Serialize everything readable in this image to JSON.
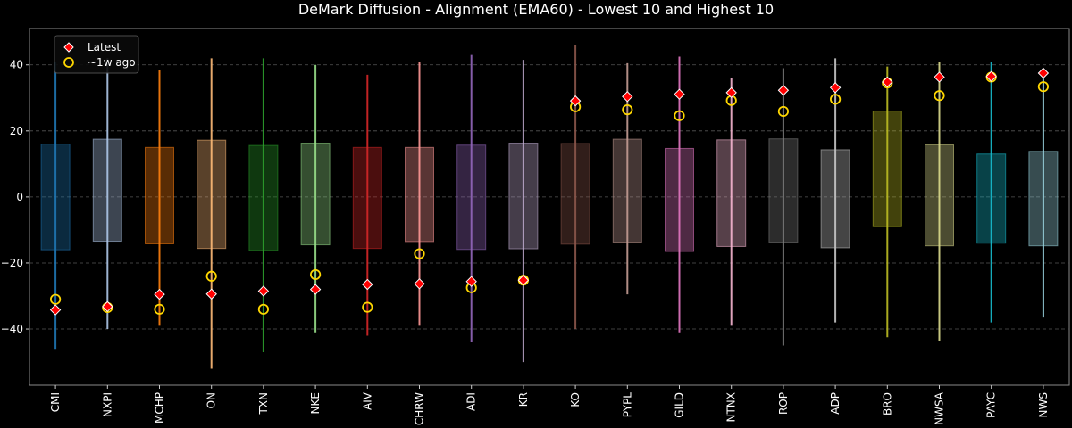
{
  "chart_data": {
    "type": "box-range",
    "title": "DeMark Diffusion - Alignment (EMA60) - Lowest 10 and Highest 10",
    "xlabel": "",
    "ylabel": "",
    "ylim": [
      -57,
      51
    ],
    "yticks": [
      -40,
      -20,
      0,
      20,
      40
    ],
    "grid": "y-dashed",
    "legend": {
      "placement": "top-left",
      "entries": [
        {
          "name": "Latest",
          "marker": "red-diamond"
        },
        {
          "name": "~1w ago",
          "marker": "yellow-circle"
        }
      ]
    },
    "categories": [
      {
        "label": "CMI",
        "color": "#1f77b4",
        "min": -46,
        "max": 41,
        "q1": -16,
        "q3": 16,
        "latest": -34.2,
        "week_ago": -31
      },
      {
        "label": "NXPI",
        "color": "#aec7e8",
        "min": -40,
        "max": 42,
        "q1": -13.4,
        "q3": 17.5,
        "latest": -33.2,
        "week_ago": -33.5
      },
      {
        "label": "MCHP",
        "color": "#ff7f0e",
        "min": -39,
        "max": 38.5,
        "q1": -14.2,
        "q3": 15,
        "latest": -29.5,
        "week_ago": -34
      },
      {
        "label": "ON",
        "color": "#ffbb78",
        "min": -52,
        "max": 42,
        "q1": -15.6,
        "q3": 17.2,
        "latest": -29.4,
        "week_ago": -24
      },
      {
        "label": "TXN",
        "color": "#2ca02c",
        "min": -47,
        "max": 42,
        "q1": -16.2,
        "q3": 15.6,
        "latest": -28.5,
        "week_ago": -34
      },
      {
        "label": "NKE",
        "color": "#98df8a",
        "min": -41,
        "max": 40,
        "q1": -14.5,
        "q3": 16.3,
        "latest": -28,
        "week_ago": -23.5
      },
      {
        "label": "AIV",
        "color": "#d62728",
        "min": -42,
        "max": 37,
        "q1": -15.6,
        "q3": 15,
        "latest": -26.5,
        "week_ago": -33.4
      },
      {
        "label": "CHRW",
        "color": "#ff9896",
        "min": -39,
        "max": 41,
        "q1": -13.5,
        "q3": 15,
        "latest": -26.3,
        "week_ago": -17.2
      },
      {
        "label": "ADI",
        "color": "#9467bd",
        "min": -44,
        "max": 43,
        "q1": -15.9,
        "q3": 15.7,
        "latest": -25.6,
        "week_ago": -27.5
      },
      {
        "label": "KR",
        "color": "#c5b0d5",
        "min": -50,
        "max": 41.5,
        "q1": -15.7,
        "q3": 16.3,
        "latest": -25.2,
        "week_ago": -25.2
      },
      {
        "label": "KO",
        "color": "#8c564b",
        "min": -40,
        "max": 46,
        "q1": -14.3,
        "q3": 16.2,
        "latest": 29.1,
        "week_ago": 27.3
      },
      {
        "label": "PYPL",
        "color": "#c49c94",
        "min": -29.5,
        "max": 40.5,
        "q1": -13.7,
        "q3": 17.5,
        "latest": 30.4,
        "week_ago": 26.4
      },
      {
        "label": "GILD",
        "color": "#e377c2",
        "min": -41,
        "max": 42.5,
        "q1": -16.5,
        "q3": 14.7,
        "latest": 31.1,
        "week_ago": 24.6
      },
      {
        "label": "NTNX",
        "color": "#f7b6d2",
        "min": -39,
        "max": 36,
        "q1": -15,
        "q3": 17.3,
        "latest": 31.6,
        "week_ago": 29.2
      },
      {
        "label": "ROP",
        "color": "#7f7f7f",
        "min": -45,
        "max": 39,
        "q1": -13.7,
        "q3": 17.6,
        "latest": 32.3,
        "week_ago": 25.9
      },
      {
        "label": "ADP",
        "color": "#c7c7c7",
        "min": -38,
        "max": 42,
        "q1": -15.4,
        "q3": 14.3,
        "latest": 33.1,
        "week_ago": 29.6
      },
      {
        "label": "BRO",
        "color": "#bcbd22",
        "min": -42.5,
        "max": 39.5,
        "q1": -9,
        "q3": 26,
        "latest": 34.8,
        "week_ago": 34.5
      },
      {
        "label": "NWSA",
        "color": "#dbdb8d",
        "min": -43.5,
        "max": 41,
        "q1": -14.8,
        "q3": 15.8,
        "latest": 36.3,
        "week_ago": 30.7
      },
      {
        "label": "PAYC",
        "color": "#17becf",
        "min": -38,
        "max": 41,
        "q1": -14,
        "q3": 13,
        "latest": 36.5,
        "week_ago": 36.3
      },
      {
        "label": "NWS",
        "color": "#9edae5",
        "min": -36.5,
        "max": 37,
        "q1": -14.8,
        "q3": 13.8,
        "latest": 37.5,
        "week_ago": 33.4
      }
    ]
  }
}
